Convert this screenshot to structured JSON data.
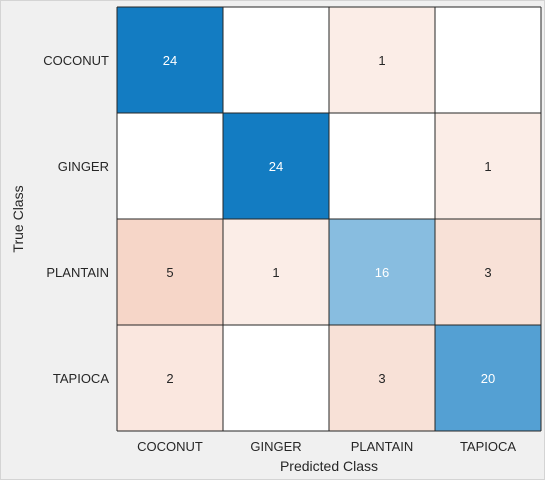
{
  "chart_data": {
    "type": "heatmap",
    "title": "",
    "xlabel": "Predicted Class",
    "ylabel": "True Class",
    "rows": [
      "COCONUT",
      "GINGER",
      "PLANTAIN",
      "TAPIOCA"
    ],
    "columns": [
      "COCONUT",
      "GINGER",
      "PLANTAIN",
      "TAPIOCA"
    ],
    "values": [
      [
        24,
        0,
        1,
        0
      ],
      [
        0,
        24,
        0,
        1
      ],
      [
        5,
        1,
        16,
        3
      ],
      [
        2,
        0,
        3,
        20
      ]
    ],
    "colors": {
      "diagonal_high": "#0072bd",
      "diagonal_low": "#ffffff",
      "offdiag_high": "#d95319",
      "offdiag_low": "#ffffff",
      "grid": "#262626",
      "background": "#f0f0f0"
    }
  }
}
